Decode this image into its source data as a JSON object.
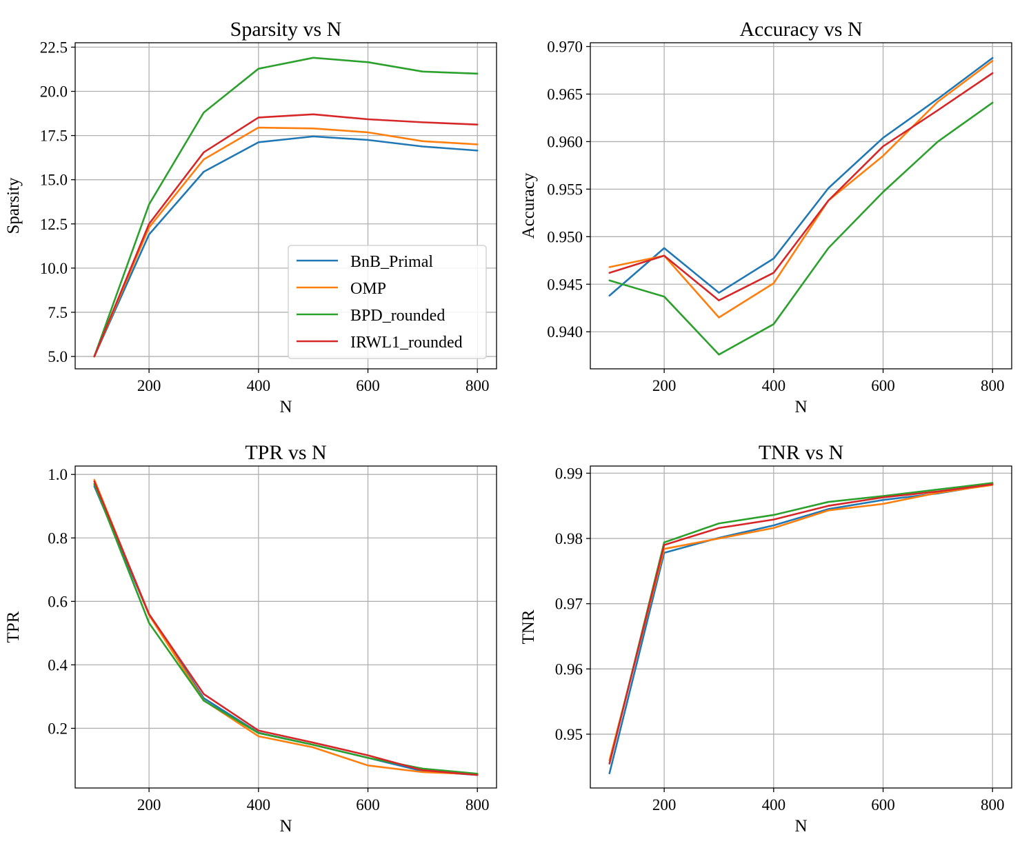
{
  "colors": {
    "BnB_Primal": "#1f77b4",
    "OMP": "#ff7f0e",
    "BPD_rounded": "#2ca02c",
    "IRWL1_rounded": "#d62728",
    "grid": "#b0b0b0",
    "axes": "#000000"
  },
  "legend": {
    "placement": "lower-right",
    "entries": [
      "BnB_Primal",
      "OMP",
      "BPD_rounded",
      "IRWL1_rounded"
    ]
  },
  "chart_data": [
    {
      "type": "line",
      "title": "Sparsity vs N",
      "xlabel": "N",
      "ylabel": "Sparsity",
      "grid": true,
      "xlim": [
        65,
        835
      ],
      "ylim": [
        4.3,
        22.75
      ],
      "xticks": [
        200,
        400,
        600,
        800
      ],
      "xtick_labels": [
        "200",
        "400",
        "600",
        "800"
      ],
      "yticks": [
        5.0,
        7.5,
        10.0,
        12.5,
        15.0,
        17.5,
        20.0,
        22.5
      ],
      "ytick_labels": [
        "5.0",
        "7.5",
        "10.0",
        "12.5",
        "15.0",
        "17.5",
        "20.0",
        "22.5"
      ],
      "x": [
        100,
        200,
        300,
        400,
        500,
        600,
        700,
        800
      ],
      "series": [
        {
          "name": "BnB_Primal",
          "values": [
            5.0,
            11.9,
            15.45,
            17.12,
            17.45,
            17.25,
            16.88,
            16.65
          ]
        },
        {
          "name": "OMP",
          "values": [
            5.0,
            12.3,
            16.15,
            17.95,
            17.9,
            17.68,
            17.18,
            17.0
          ]
        },
        {
          "name": "BPD_rounded",
          "values": [
            5.0,
            13.6,
            18.8,
            21.28,
            21.9,
            21.65,
            21.12,
            21.0
          ]
        },
        {
          "name": "IRWL1_rounded",
          "values": [
            5.0,
            12.5,
            16.55,
            18.52,
            18.7,
            18.42,
            18.25,
            18.12
          ]
        }
      ],
      "legend": true
    },
    {
      "type": "line",
      "title": "Accuracy vs N",
      "xlabel": "N",
      "ylabel": "Accuracy",
      "grid": true,
      "xlim": [
        65,
        835
      ],
      "ylim": [
        0.9361,
        0.9704
      ],
      "xticks": [
        200,
        400,
        600,
        800
      ],
      "xtick_labels": [
        "200",
        "400",
        "600",
        "800"
      ],
      "yticks": [
        0.94,
        0.945,
        0.95,
        0.955,
        0.96,
        0.965,
        0.97
      ],
      "ytick_labels": [
        "0.940",
        "0.945",
        "0.950",
        "0.955",
        "0.960",
        "0.965",
        "0.970"
      ],
      "x": [
        100,
        200,
        300,
        400,
        500,
        600,
        700,
        800
      ],
      "series": [
        {
          "name": "BnB_Primal",
          "values": [
            0.9438,
            0.9488,
            0.9441,
            0.9477,
            0.9551,
            0.9604,
            0.9645,
            0.9688
          ]
        },
        {
          "name": "OMP",
          "values": [
            0.9468,
            0.948,
            0.9415,
            0.9451,
            0.9538,
            0.9585,
            0.9642,
            0.9685
          ]
        },
        {
          "name": "BPD_rounded",
          "values": [
            0.9454,
            0.9437,
            0.9376,
            0.9408,
            0.9488,
            0.9547,
            0.96,
            0.9641
          ]
        },
        {
          "name": "IRWL1_rounded",
          "values": [
            0.9462,
            0.948,
            0.9433,
            0.9462,
            0.9538,
            0.9595,
            0.9633,
            0.9672
          ]
        }
      ],
      "legend": false
    },
    {
      "type": "line",
      "title": "TPR vs N",
      "xlabel": "N",
      "ylabel": "TPR",
      "grid": true,
      "xlim": [
        65,
        835
      ],
      "ylim": [
        0.012,
        1.0265
      ],
      "xticks": [
        200,
        400,
        600,
        800
      ],
      "xtick_labels": [
        "200",
        "400",
        "600",
        "800"
      ],
      "yticks": [
        0.2,
        0.4,
        0.6,
        0.8,
        1.0
      ],
      "ytick_labels": [
        "0.2",
        "0.4",
        "0.6",
        "0.8",
        "1.0"
      ],
      "x": [
        100,
        200,
        300,
        400,
        500,
        600,
        700,
        800
      ],
      "series": [
        {
          "name": "BnB_Primal",
          "values": [
            0.963,
            0.558,
            0.295,
            0.186,
            0.148,
            0.107,
            0.065,
            0.053
          ]
        },
        {
          "name": "OMP",
          "values": [
            0.983,
            0.557,
            0.288,
            0.175,
            0.14,
            0.083,
            0.062,
            0.055
          ]
        },
        {
          "name": "BPD_rounded",
          "values": [
            0.97,
            0.532,
            0.287,
            0.185,
            0.148,
            0.107,
            0.073,
            0.057
          ]
        },
        {
          "name": "IRWL1_rounded",
          "values": [
            0.978,
            0.56,
            0.308,
            0.193,
            0.155,
            0.115,
            0.068,
            0.053
          ]
        }
      ],
      "legend": false
    },
    {
      "type": "line",
      "title": "TNR vs N",
      "xlabel": "N",
      "ylabel": "TNR",
      "grid": true,
      "xlim": [
        65,
        835
      ],
      "ylim": [
        0.94175,
        0.9911
      ],
      "xticks": [
        200,
        400,
        600,
        800
      ],
      "xtick_labels": [
        "200",
        "400",
        "600",
        "800"
      ],
      "yticks": [
        0.95,
        0.96,
        0.97,
        0.98,
        0.99
      ],
      "ytick_labels": [
        "0.95",
        "0.96",
        "0.97",
        "0.98",
        "0.99"
      ],
      "x": [
        100,
        200,
        300,
        400,
        500,
        600,
        700,
        800
      ],
      "series": [
        {
          "name": "BnB_Primal",
          "values": [
            0.944,
            0.9778,
            0.9801,
            0.982,
            0.9845,
            0.9859,
            0.9869,
            0.9883
          ]
        },
        {
          "name": "OMP",
          "values": [
            0.946,
            0.9784,
            0.98,
            0.9816,
            0.9843,
            0.9853,
            0.987,
            0.9882
          ]
        },
        {
          "name": "BPD_rounded",
          "values": [
            0.9455,
            0.9794,
            0.9823,
            0.9836,
            0.9856,
            0.9865,
            0.9875,
            0.9885
          ]
        },
        {
          "name": "IRWL1_rounded",
          "values": [
            0.9455,
            0.979,
            0.9816,
            0.9829,
            0.985,
            0.9863,
            0.9872,
            0.9883
          ]
        }
      ],
      "legend": false
    }
  ]
}
